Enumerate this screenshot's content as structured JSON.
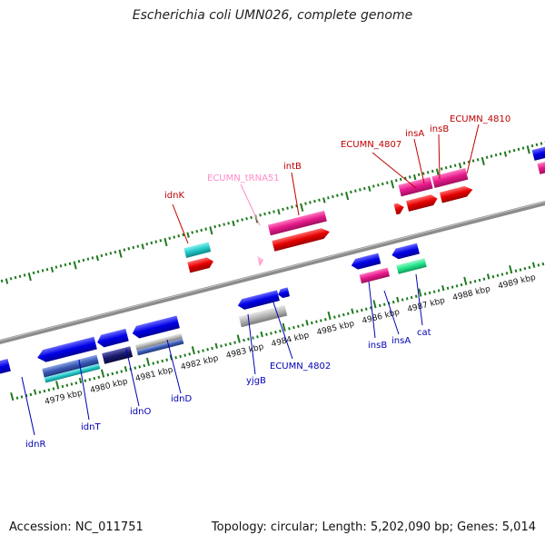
{
  "title": "Escherichia coli UMN026, complete genome",
  "accession": "Accession: NC_011751",
  "summary": "Topology: circular; Length: 5,202,090 bp; Genes: 5,014",
  "scale_labels": [
    "4979 kbp",
    "4980 kbp",
    "4981 kbp",
    "4982 kbp",
    "4983 kbp",
    "4984 kbp",
    "4985 kbp",
    "4986 kbp",
    "4987 kbp",
    "4988 kbp",
    "4989 kbp"
  ],
  "top_gene_labels": [
    "idnK",
    "ECUMN_tRNA51",
    "intB",
    "ECUMN_4807",
    "insA",
    "insB",
    "ECUMN_4810"
  ],
  "bottom_gene_labels": [
    "idnR",
    "idnT",
    "idnO",
    "idnD",
    "yjgB",
    "ECUMN_4802",
    "insB",
    "insA",
    "cat"
  ],
  "colors": {
    "backbone": "#8c8c8c",
    "tick": "#1f7a1f",
    "forward_cds": "#e6198c",
    "forward_gene": "#e60000",
    "reverse_gene": "#0000e6",
    "reverse_cds_cyan": "#22c8c8",
    "reverse_cds_blue": "#3a5ab4",
    "reverse_cds_navy": "#1a1a6e",
    "reverse_cds_grey": "#b4b4b4",
    "forward_cds_green": "#22e68c",
    "trna": "#ff9ac8",
    "label_red": "#c00000",
    "label_blue": "#0000b4",
    "label_pink": "#ff8cc8"
  }
}
